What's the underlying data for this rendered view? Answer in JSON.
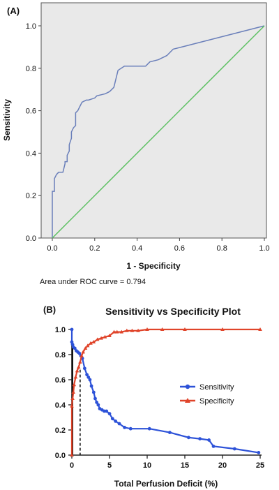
{
  "chart_data": [
    {
      "panel_label": "(A)",
      "type": "line",
      "title": "",
      "xlabel": "1 - Specificity",
      "ylabel": "Sensitivity",
      "xlim": [
        0,
        1
      ],
      "ylim": [
        0,
        1
      ],
      "xticks": [
        "0.0",
        "0.2",
        "0.4",
        "0.6",
        "0.8",
        "1.0"
      ],
      "yticks": [
        "0.0",
        "0.2",
        "0.4",
        "0.6",
        "0.8",
        "1.0"
      ],
      "background": "#e9e9e9",
      "grid": false,
      "legend": "none",
      "annotation": "Area under ROC curve = 0.794",
      "series": [
        {
          "color": "#6a7fba",
          "x": [
            0.0,
            0.0,
            0.01,
            0.01,
            0.02,
            0.03,
            0.05,
            0.06,
            0.06,
            0.07,
            0.07,
            0.08,
            0.08,
            0.09,
            0.09,
            0.1,
            0.11,
            0.11,
            0.12,
            0.13,
            0.14,
            0.16,
            0.17,
            0.2,
            0.21,
            0.25,
            0.27,
            0.29,
            0.31,
            0.34,
            0.44,
            0.46,
            0.5,
            0.54,
            0.57,
            0.61,
            1.0
          ],
          "y": [
            0.0,
            0.22,
            0.22,
            0.28,
            0.3,
            0.31,
            0.31,
            0.35,
            0.36,
            0.36,
            0.39,
            0.41,
            0.44,
            0.47,
            0.5,
            0.52,
            0.53,
            0.59,
            0.6,
            0.62,
            0.64,
            0.65,
            0.65,
            0.66,
            0.67,
            0.68,
            0.69,
            0.71,
            0.79,
            0.81,
            0.81,
            0.83,
            0.84,
            0.86,
            0.89,
            0.9,
            1.0
          ]
        },
        {
          "color": "#5cc062",
          "x": [
            0,
            1
          ],
          "y": [
            0,
            1
          ]
        }
      ]
    },
    {
      "panel_label": "(B)",
      "type": "line",
      "title": "Sensitivity vs Specificity Plot",
      "xlabel": "Total Perfusion Deficit (%)",
      "ylabel": "",
      "xlim": [
        0,
        25
      ],
      "ylim": [
        0,
        1
      ],
      "xticks": [
        "0",
        "5",
        "10",
        "15",
        "20",
        "25"
      ],
      "yticks": [
        "0.0",
        "0.2",
        "0.4",
        "0.6",
        "0.8",
        "1.0"
      ],
      "grid": false,
      "legend": "right",
      "cutoff_line": {
        "x": 1.1,
        "y": 0.68
      },
      "series": [
        {
          "name": "Sensitivity",
          "color": "#2d52d8",
          "marker": "circle",
          "x": [
            0.0,
            0.0,
            0.1,
            0.2,
            0.4,
            0.6,
            0.8,
            1.0,
            1.2,
            1.4,
            1.7,
            2.0,
            2.2,
            2.4,
            2.6,
            2.9,
            3.1,
            3.3,
            3.5,
            3.7,
            4.0,
            4.3,
            4.6,
            5.0,
            5.4,
            5.8,
            6.3,
            7.0,
            7.8,
            10.3,
            13.0,
            15.5,
            17.0,
            18.2,
            18.8,
            21.6,
            24.8
          ],
          "y": [
            1.0,
            0.9,
            0.88,
            0.86,
            0.85,
            0.83,
            0.82,
            0.81,
            0.79,
            0.77,
            0.69,
            0.64,
            0.62,
            0.6,
            0.55,
            0.5,
            0.45,
            0.42,
            0.4,
            0.37,
            0.36,
            0.35,
            0.35,
            0.33,
            0.29,
            0.27,
            0.25,
            0.22,
            0.21,
            0.21,
            0.18,
            0.14,
            0.13,
            0.12,
            0.07,
            0.05,
            0.02
          ]
        },
        {
          "name": "Specificity",
          "color": "#e0442a",
          "marker": "triangle",
          "x": [
            0.0,
            0.0,
            0.1,
            0.2,
            0.3,
            0.5,
            0.7,
            0.9,
            1.1,
            1.3,
            1.5,
            1.8,
            2.1,
            2.5,
            2.9,
            3.4,
            3.9,
            4.4,
            5.0,
            5.6,
            6.0,
            6.6,
            7.3,
            8.0,
            8.8,
            10.0,
            12.0,
            15.0,
            20.0,
            25.0
          ],
          "y": [
            0.0,
            0.39,
            0.45,
            0.5,
            0.56,
            0.62,
            0.67,
            0.7,
            0.74,
            0.79,
            0.82,
            0.85,
            0.87,
            0.89,
            0.9,
            0.92,
            0.93,
            0.94,
            0.95,
            0.98,
            0.98,
            0.98,
            0.99,
            0.99,
            0.99,
            1.0,
            1.0,
            1.0,
            1.0,
            1.0
          ]
        }
      ]
    }
  ]
}
